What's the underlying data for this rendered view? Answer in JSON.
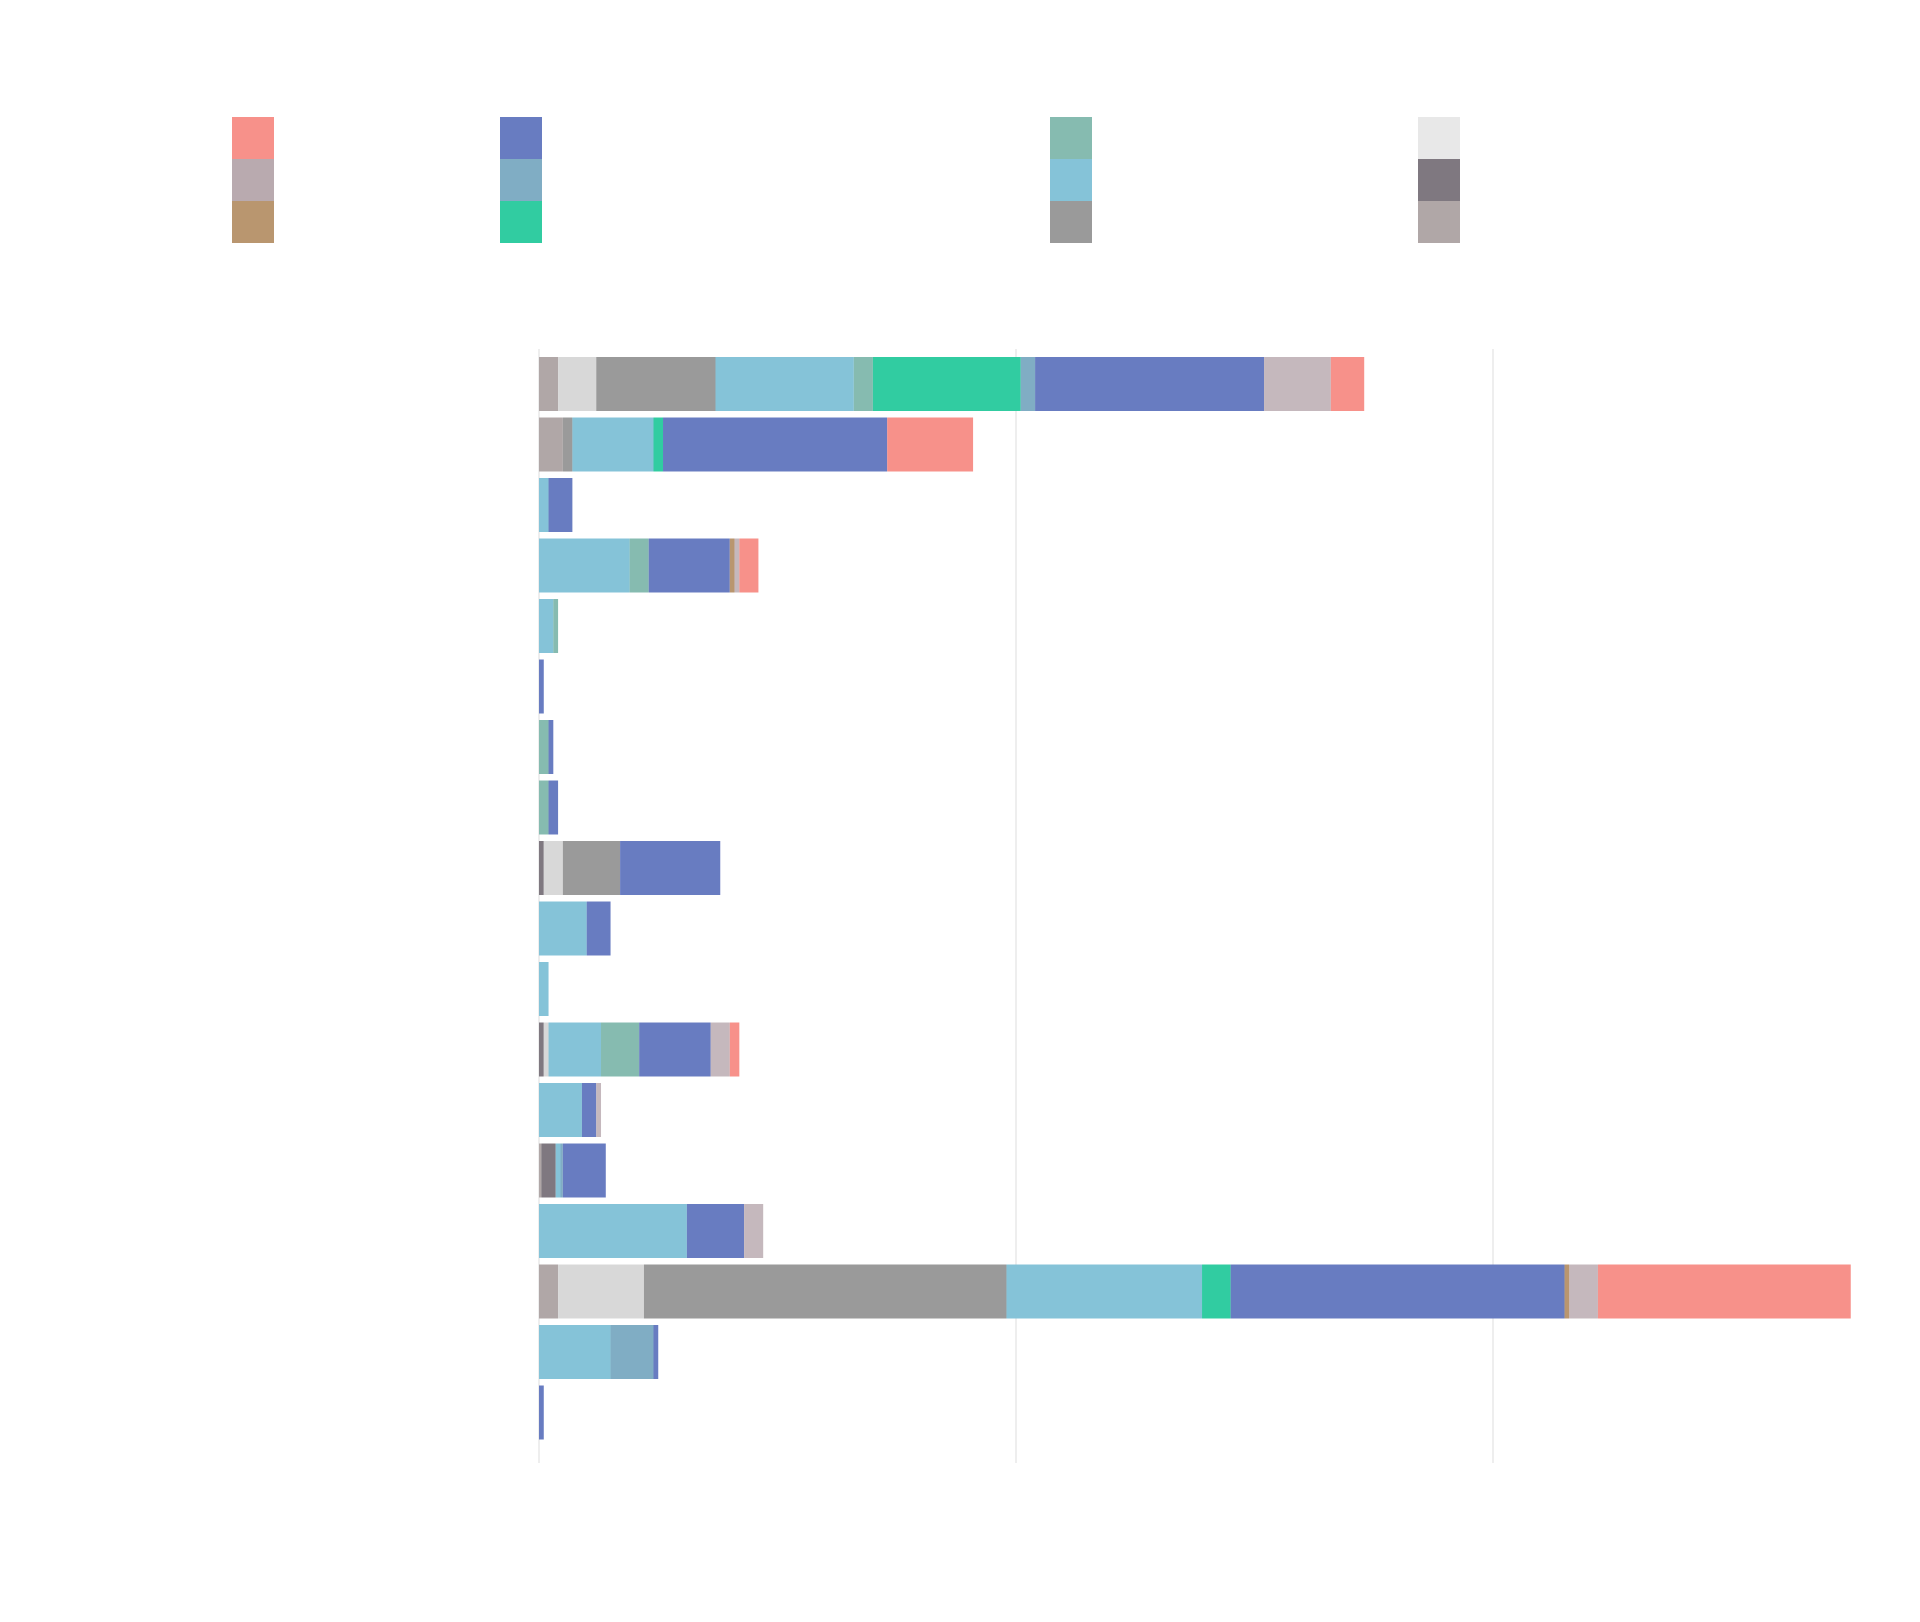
{
  "chart_data": {
    "type": "bar",
    "orientation": "horizontal",
    "stacked": true,
    "title": "",
    "xlabel": "",
    "ylabel": "",
    "xlim": [
      0,
      2750
    ],
    "grid": true,
    "legend_position": "top",
    "categories": [
      "",
      "",
      "",
      "",
      "",
      "",
      "",
      "",
      "",
      "",
      "",
      "",
      "",
      "",
      "",
      "",
      "",
      ""
    ],
    "series": [
      {
        "color": "#b0a7a7",
        "values": [
          40,
          50,
          0,
          0,
          0,
          0,
          0,
          0,
          0,
          0,
          0,
          0,
          0,
          5,
          0,
          40,
          0,
          0
        ]
      },
      {
        "color": "#7f7880",
        "values": [
          0,
          0,
          0,
          0,
          0,
          0,
          0,
          0,
          10,
          0,
          0,
          10,
          0,
          30,
          0,
          0,
          0,
          0
        ]
      },
      {
        "color": "#d8d8d8",
        "values": [
          80,
          0,
          0,
          0,
          0,
          0,
          0,
          0,
          40,
          0,
          0,
          10,
          0,
          0,
          0,
          180,
          0,
          0
        ]
      },
      {
        "color": "#9a9a9a",
        "values": [
          250,
          20,
          0,
          0,
          0,
          0,
          0,
          0,
          120,
          0,
          0,
          0,
          0,
          0,
          0,
          760,
          0,
          0
        ]
      },
      {
        "color": "#85c3d8",
        "values": [
          290,
          170,
          20,
          190,
          30,
          0,
          0,
          0,
          0,
          100,
          20,
          110,
          90,
          10,
          310,
          410,
          150,
          0
        ]
      },
      {
        "color": "#86bbb0",
        "values": [
          40,
          0,
          0,
          40,
          10,
          0,
          20,
          20,
          0,
          0,
          0,
          80,
          0,
          0,
          0,
          0,
          0,
          0
        ]
      },
      {
        "color": "#31cca1",
        "values": [
          310,
          20,
          0,
          0,
          0,
          0,
          0,
          0,
          0,
          0,
          0,
          0,
          0,
          0,
          0,
          60,
          0,
          0
        ]
      },
      {
        "color": "#80adc4",
        "values": [
          30,
          0,
          0,
          0,
          0,
          0,
          0,
          0,
          0,
          0,
          0,
          0,
          0,
          5,
          0,
          0,
          90,
          0
        ]
      },
      {
        "color": "#687cc1",
        "values": [
          480,
          470,
          50,
          170,
          0,
          10,
          10,
          20,
          210,
          50,
          0,
          150,
          30,
          90,
          120,
          700,
          10,
          10
        ]
      },
      {
        "color": "#b9966f",
        "values": [
          0,
          0,
          0,
          10,
          0,
          0,
          0,
          0,
          0,
          0,
          0,
          0,
          0,
          0,
          0,
          10,
          0,
          0
        ]
      },
      {
        "color": "#c5b8bd",
        "values": [
          140,
          0,
          0,
          10,
          0,
          0,
          0,
          0,
          0,
          0,
          0,
          40,
          10,
          0,
          40,
          60,
          0,
          0
        ]
      },
      {
        "color": "#f7918a",
        "values": [
          70,
          180,
          0,
          40,
          0,
          0,
          0,
          0,
          0,
          0,
          0,
          20,
          0,
          0,
          0,
          530,
          0,
          0
        ]
      }
    ]
  },
  "legend": {
    "items": [
      {
        "color": "#f7918a"
      },
      {
        "color": "#b9aaaf"
      },
      {
        "color": "#b9966f"
      },
      {
        "color": "#687cc1"
      },
      {
        "color": "#80adc4"
      },
      {
        "color": "#31cca1"
      },
      {
        "color": "#86bbb0"
      },
      {
        "color": "#85c3d8"
      },
      {
        "color": "#9a9a9a"
      },
      {
        "color": "#e8e8e8"
      },
      {
        "color": "#7f7880"
      },
      {
        "color": "#b0a7a7"
      }
    ]
  },
  "colors": {
    "background": "#ffffff",
    "grid": "#dddddd"
  }
}
